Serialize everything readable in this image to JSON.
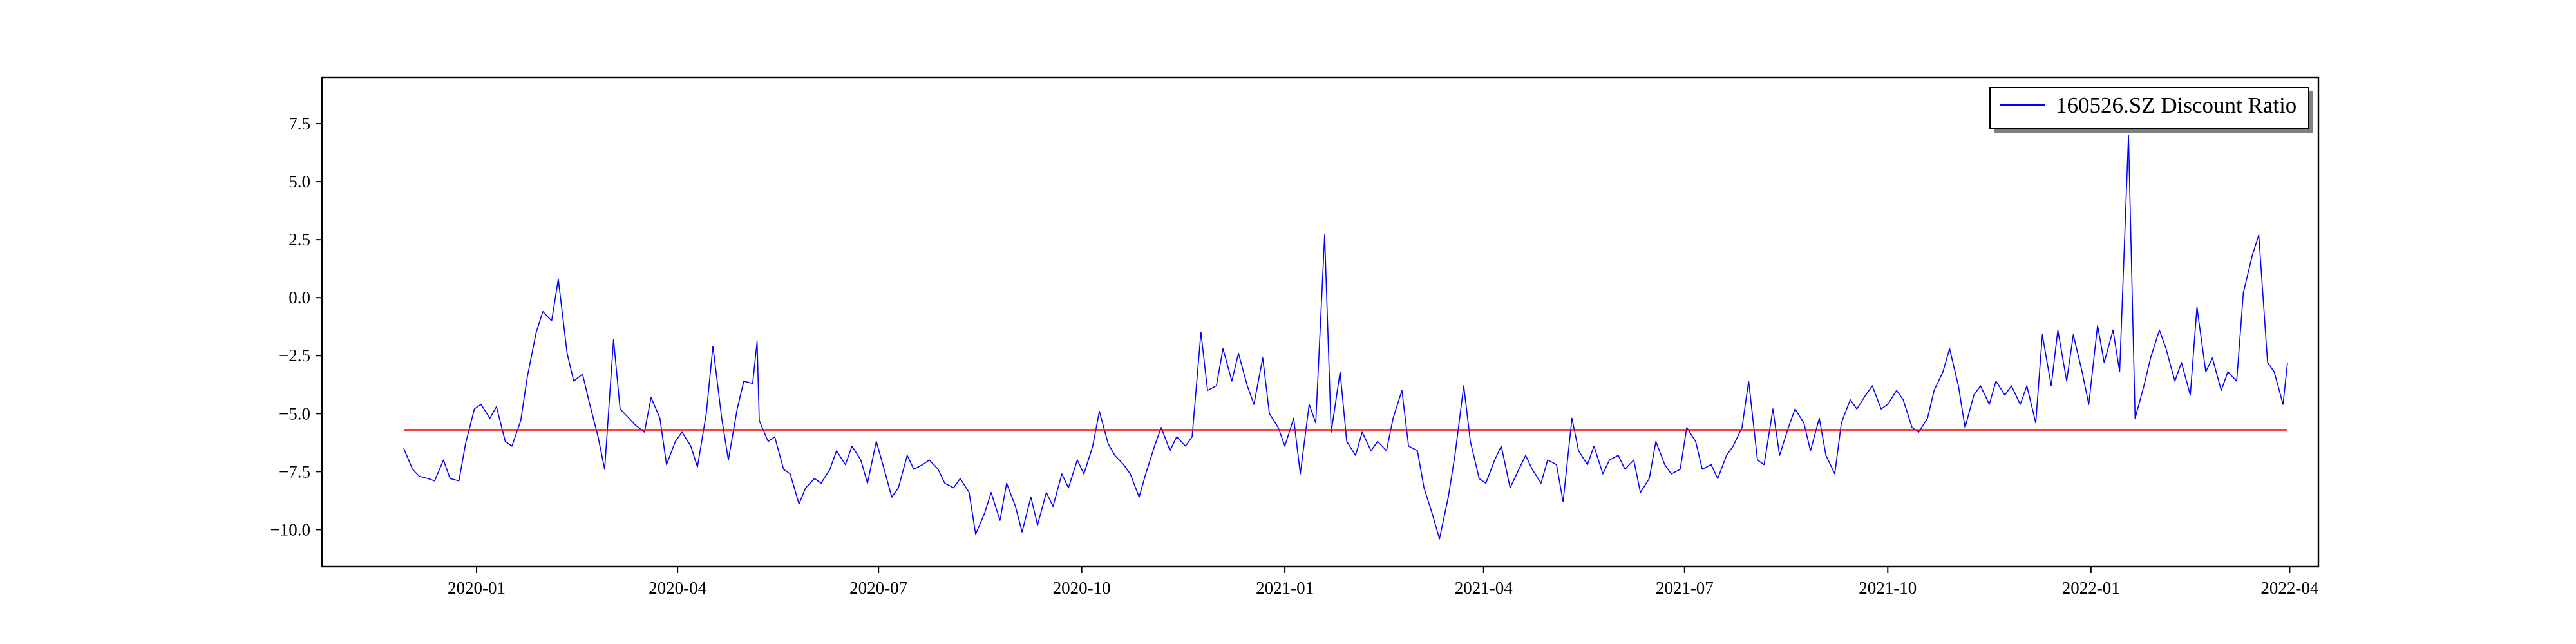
{
  "chart_data": {
    "type": "line",
    "title": "",
    "xlabel": "",
    "ylabel": "",
    "x_range": [
      "2019-10-23",
      "2022-04-14"
    ],
    "ylim": [
      -11.6,
      9.5
    ],
    "x_ticks": [
      {
        "date": "2020-01-01",
        "label": "2020-01"
      },
      {
        "date": "2020-04-01",
        "label": "2020-04"
      },
      {
        "date": "2020-07-01",
        "label": "2020-07"
      },
      {
        "date": "2020-10-01",
        "label": "2020-10"
      },
      {
        "date": "2021-01-01",
        "label": "2021-01"
      },
      {
        "date": "2021-04-01",
        "label": "2021-04"
      },
      {
        "date": "2021-07-01",
        "label": "2021-07"
      },
      {
        "date": "2021-10-01",
        "label": "2021-10"
      },
      {
        "date": "2022-01-01",
        "label": "2022-01"
      },
      {
        "date": "2022-04-01",
        "label": "2022-04"
      }
    ],
    "y_ticks": [
      {
        "value": 7.5,
        "label": "7.5"
      },
      {
        "value": 5.0,
        "label": "5.0"
      },
      {
        "value": 2.5,
        "label": "2.5"
      },
      {
        "value": 0.0,
        "label": "0.0"
      },
      {
        "value": -2.5,
        "label": "−2.5"
      },
      {
        "value": -5.0,
        "label": "−5.0"
      },
      {
        "value": -7.5,
        "label": "−7.5"
      },
      {
        "value": -10.0,
        "label": "−10.0"
      }
    ],
    "grid": false,
    "legend": {
      "position": "upper-right",
      "entries": [
        "160526.SZ Discount Ratio"
      ]
    },
    "series": [
      {
        "name": "160526.SZ Discount Ratio",
        "color": "#0000ff",
        "points": [
          [
            "2019-11-29",
            -6.5
          ],
          [
            "2019-12-03",
            -7.4
          ],
          [
            "2019-12-06",
            -7.7
          ],
          [
            "2019-12-10",
            -7.8
          ],
          [
            "2019-12-13",
            -7.9
          ],
          [
            "2019-12-17",
            -7.0
          ],
          [
            "2019-12-20",
            -7.8
          ],
          [
            "2019-12-24",
            -7.9
          ],
          [
            "2019-12-27",
            -6.3
          ],
          [
            "2019-12-31",
            -4.8
          ],
          [
            "2020-01-03",
            -4.6
          ],
          [
            "2020-01-07",
            -5.2
          ],
          [
            "2020-01-10",
            -4.7
          ],
          [
            "2020-01-14",
            -6.2
          ],
          [
            "2020-01-17",
            -6.4
          ],
          [
            "2020-01-21",
            -5.3
          ],
          [
            "2020-01-24",
            -3.4
          ],
          [
            "2020-01-28",
            -1.5
          ],
          [
            "2020-01-31",
            -0.6
          ],
          [
            "2020-02-04",
            -1.0
          ],
          [
            "2020-02-07",
            0.8
          ],
          [
            "2020-02-11",
            -2.4
          ],
          [
            "2020-02-14",
            -3.6
          ],
          [
            "2020-02-18",
            -3.3
          ],
          [
            "2020-02-21",
            -4.5
          ],
          [
            "2020-02-25",
            -6.0
          ],
          [
            "2020-02-28",
            -7.4
          ],
          [
            "2020-03-03",
            -1.8
          ],
          [
            "2020-03-06",
            -4.8
          ],
          [
            "2020-03-10",
            -5.2
          ],
          [
            "2020-03-13",
            -5.5
          ],
          [
            "2020-03-17",
            -5.8
          ],
          [
            "2020-03-20",
            -4.3
          ],
          [
            "2020-03-24",
            -5.2
          ],
          [
            "2020-03-27",
            -7.2
          ],
          [
            "2020-03-31",
            -6.2
          ],
          [
            "2020-04-03",
            -5.8
          ],
          [
            "2020-04-07",
            -6.4
          ],
          [
            "2020-04-10",
            -7.3
          ],
          [
            "2020-04-14",
            -5.0
          ],
          [
            "2020-04-17",
            -2.1
          ],
          [
            "2020-04-21",
            -5.2
          ],
          [
            "2020-04-24",
            -7.0
          ],
          [
            "2020-04-28",
            -4.8
          ],
          [
            "2020-05-01",
            -3.6
          ],
          [
            "2020-05-05",
            -3.7
          ],
          [
            "2020-05-07",
            -1.9
          ],
          [
            "2020-05-08",
            -5.3
          ],
          [
            "2020-05-12",
            -6.2
          ],
          [
            "2020-05-15",
            -6.0
          ],
          [
            "2020-05-19",
            -7.4
          ],
          [
            "2020-05-22",
            -7.6
          ],
          [
            "2020-05-26",
            -8.9
          ],
          [
            "2020-05-29",
            -8.2
          ],
          [
            "2020-06-02",
            -7.8
          ],
          [
            "2020-06-05",
            -8.0
          ],
          [
            "2020-06-09",
            -7.4
          ],
          [
            "2020-06-12",
            -6.6
          ],
          [
            "2020-06-16",
            -7.2
          ],
          [
            "2020-06-19",
            -6.4
          ],
          [
            "2020-06-23",
            -7.0
          ],
          [
            "2020-06-26",
            -8.0
          ],
          [
            "2020-06-30",
            -6.2
          ],
          [
            "2020-07-03",
            -7.2
          ],
          [
            "2020-07-07",
            -8.6
          ],
          [
            "2020-07-10",
            -8.2
          ],
          [
            "2020-07-14",
            -6.8
          ],
          [
            "2020-07-17",
            -7.4
          ],
          [
            "2020-07-21",
            -7.2
          ],
          [
            "2020-07-24",
            -7.0
          ],
          [
            "2020-07-28",
            -7.4
          ],
          [
            "2020-07-31",
            -8.0
          ],
          [
            "2020-08-04",
            -8.2
          ],
          [
            "2020-08-07",
            -7.8
          ],
          [
            "2020-08-11",
            -8.4
          ],
          [
            "2020-08-14",
            -10.2
          ],
          [
            "2020-08-18",
            -9.3
          ],
          [
            "2020-08-21",
            -8.4
          ],
          [
            "2020-08-25",
            -9.6
          ],
          [
            "2020-08-28",
            -8.0
          ],
          [
            "2020-09-01",
            -9.0
          ],
          [
            "2020-09-04",
            -10.1
          ],
          [
            "2020-09-08",
            -8.6
          ],
          [
            "2020-09-11",
            -9.8
          ],
          [
            "2020-09-15",
            -8.4
          ],
          [
            "2020-09-18",
            -9.0
          ],
          [
            "2020-09-22",
            -7.6
          ],
          [
            "2020-09-25",
            -8.2
          ],
          [
            "2020-09-29",
            -7.0
          ],
          [
            "2020-10-02",
            -7.6
          ],
          [
            "2020-10-06",
            -6.4
          ],
          [
            "2020-10-09",
            -4.9
          ],
          [
            "2020-10-13",
            -6.3
          ],
          [
            "2020-10-16",
            -6.8
          ],
          [
            "2020-10-20",
            -7.2
          ],
          [
            "2020-10-23",
            -7.6
          ],
          [
            "2020-10-27",
            -8.6
          ],
          [
            "2020-10-30",
            -7.6
          ],
          [
            "2020-11-03",
            -6.4
          ],
          [
            "2020-11-06",
            -5.6
          ],
          [
            "2020-11-10",
            -6.6
          ],
          [
            "2020-11-13",
            -6.0
          ],
          [
            "2020-11-17",
            -6.4
          ],
          [
            "2020-11-20",
            -6.0
          ],
          [
            "2020-11-24",
            -1.5
          ],
          [
            "2020-11-27",
            -4.0
          ],
          [
            "2020-12-01",
            -3.8
          ],
          [
            "2020-12-04",
            -2.2
          ],
          [
            "2020-12-08",
            -3.6
          ],
          [
            "2020-12-11",
            -2.4
          ],
          [
            "2020-12-15",
            -3.8
          ],
          [
            "2020-12-18",
            -4.6
          ],
          [
            "2020-12-22",
            -2.6
          ],
          [
            "2020-12-25",
            -5.0
          ],
          [
            "2020-12-29",
            -5.6
          ],
          [
            "2021-01-01",
            -6.4
          ],
          [
            "2021-01-05",
            -5.2
          ],
          [
            "2021-01-08",
            -7.6
          ],
          [
            "2021-01-12",
            -4.6
          ],
          [
            "2021-01-15",
            -5.4
          ],
          [
            "2021-01-19",
            2.7
          ],
          [
            "2021-01-22",
            -5.8
          ],
          [
            "2021-01-26",
            -3.2
          ],
          [
            "2021-01-29",
            -6.2
          ],
          [
            "2021-02-02",
            -6.8
          ],
          [
            "2021-02-05",
            -5.8
          ],
          [
            "2021-02-09",
            -6.6
          ],
          [
            "2021-02-12",
            -6.2
          ],
          [
            "2021-02-16",
            -6.6
          ],
          [
            "2021-02-19",
            -5.2
          ],
          [
            "2021-02-23",
            -4.0
          ],
          [
            "2021-02-26",
            -6.4
          ],
          [
            "2021-03-02",
            -6.6
          ],
          [
            "2021-03-05",
            -8.2
          ],
          [
            "2021-03-09",
            -9.4
          ],
          [
            "2021-03-12",
            -10.4
          ],
          [
            "2021-03-16",
            -8.6
          ],
          [
            "2021-03-19",
            -6.8
          ],
          [
            "2021-03-23",
            -3.8
          ],
          [
            "2021-03-26",
            -6.2
          ],
          [
            "2021-03-30",
            -7.8
          ],
          [
            "2021-04-02",
            -8.0
          ],
          [
            "2021-04-06",
            -7.0
          ],
          [
            "2021-04-09",
            -6.4
          ],
          [
            "2021-04-13",
            -8.2
          ],
          [
            "2021-04-16",
            -7.6
          ],
          [
            "2021-04-20",
            -6.8
          ],
          [
            "2021-04-23",
            -7.4
          ],
          [
            "2021-04-27",
            -8.0
          ],
          [
            "2021-04-30",
            -7.0
          ],
          [
            "2021-05-04",
            -7.2
          ],
          [
            "2021-05-07",
            -8.8
          ],
          [
            "2021-05-11",
            -5.2
          ],
          [
            "2021-05-14",
            -6.6
          ],
          [
            "2021-05-18",
            -7.2
          ],
          [
            "2021-05-21",
            -6.4
          ],
          [
            "2021-05-25",
            -7.6
          ],
          [
            "2021-05-28",
            -7.0
          ],
          [
            "2021-06-01",
            -6.8
          ],
          [
            "2021-06-04",
            -7.4
          ],
          [
            "2021-06-08",
            -7.0
          ],
          [
            "2021-06-11",
            -8.4
          ],
          [
            "2021-06-15",
            -7.8
          ],
          [
            "2021-06-18",
            -6.2
          ],
          [
            "2021-06-22",
            -7.2
          ],
          [
            "2021-06-25",
            -7.6
          ],
          [
            "2021-06-29",
            -7.4
          ],
          [
            "2021-07-02",
            -5.6
          ],
          [
            "2021-07-06",
            -6.2
          ],
          [
            "2021-07-09",
            -7.4
          ],
          [
            "2021-07-13",
            -7.2
          ],
          [
            "2021-07-16",
            -7.8
          ],
          [
            "2021-07-20",
            -6.8
          ],
          [
            "2021-07-23",
            -6.4
          ],
          [
            "2021-07-27",
            -5.6
          ],
          [
            "2021-07-30",
            -3.6
          ],
          [
            "2021-08-03",
            -7.0
          ],
          [
            "2021-08-06",
            -7.2
          ],
          [
            "2021-08-10",
            -4.8
          ],
          [
            "2021-08-13",
            -6.8
          ],
          [
            "2021-08-17",
            -5.6
          ],
          [
            "2021-08-20",
            -4.8
          ],
          [
            "2021-08-24",
            -5.4
          ],
          [
            "2021-08-27",
            -6.6
          ],
          [
            "2021-08-31",
            -5.2
          ],
          [
            "2021-09-03",
            -6.8
          ],
          [
            "2021-09-07",
            -7.6
          ],
          [
            "2021-09-10",
            -5.4
          ],
          [
            "2021-09-14",
            -4.4
          ],
          [
            "2021-09-17",
            -4.8
          ],
          [
            "2021-09-21",
            -4.2
          ],
          [
            "2021-09-24",
            -3.8
          ],
          [
            "2021-09-28",
            -4.8
          ],
          [
            "2021-10-01",
            -4.6
          ],
          [
            "2021-10-05",
            -4.0
          ],
          [
            "2021-10-08",
            -4.4
          ],
          [
            "2021-10-12",
            -5.6
          ],
          [
            "2021-10-15",
            -5.8
          ],
          [
            "2021-10-19",
            -5.2
          ],
          [
            "2021-10-22",
            -4.0
          ],
          [
            "2021-10-26",
            -3.2
          ],
          [
            "2021-10-29",
            -2.2
          ],
          [
            "2021-11-02",
            -3.8
          ],
          [
            "2021-11-05",
            -5.6
          ],
          [
            "2021-11-09",
            -4.2
          ],
          [
            "2021-11-12",
            -3.8
          ],
          [
            "2021-11-16",
            -4.6
          ],
          [
            "2021-11-19",
            -3.6
          ],
          [
            "2021-11-23",
            -4.2
          ],
          [
            "2021-11-26",
            -3.8
          ],
          [
            "2021-11-30",
            -4.6
          ],
          [
            "2021-12-03",
            -3.8
          ],
          [
            "2021-12-07",
            -5.4
          ],
          [
            "2021-12-10",
            -1.6
          ],
          [
            "2021-12-14",
            -3.8
          ],
          [
            "2021-12-17",
            -1.4
          ],
          [
            "2021-12-21",
            -3.6
          ],
          [
            "2021-12-24",
            -1.6
          ],
          [
            "2021-12-28",
            -3.2
          ],
          [
            "2021-12-31",
            -4.6
          ],
          [
            "2022-01-04",
            -1.2
          ],
          [
            "2022-01-07",
            -2.8
          ],
          [
            "2022-01-11",
            -1.4
          ],
          [
            "2022-01-14",
            -3.2
          ],
          [
            "2022-01-18",
            7.0
          ],
          [
            "2022-01-21",
            -5.2
          ],
          [
            "2022-01-25",
            -3.8
          ],
          [
            "2022-01-28",
            -2.6
          ],
          [
            "2022-02-01",
            -1.4
          ],
          [
            "2022-02-04",
            -2.2
          ],
          [
            "2022-02-08",
            -3.6
          ],
          [
            "2022-02-11",
            -2.8
          ],
          [
            "2022-02-15",
            -4.2
          ],
          [
            "2022-02-18",
            -0.4
          ],
          [
            "2022-02-22",
            -3.2
          ],
          [
            "2022-02-25",
            -2.6
          ],
          [
            "2022-03-01",
            -4.0
          ],
          [
            "2022-03-04",
            -3.2
          ],
          [
            "2022-03-08",
            -3.6
          ],
          [
            "2022-03-11",
            0.2
          ],
          [
            "2022-03-15",
            1.8
          ],
          [
            "2022-03-18",
            2.7
          ],
          [
            "2022-03-22",
            -2.8
          ],
          [
            "2022-03-25",
            -3.2
          ],
          [
            "2022-03-29",
            -4.6
          ],
          [
            "2022-03-31",
            -2.8
          ]
        ]
      },
      {
        "name": "",
        "color": "#ff0000",
        "points": [
          [
            "2019-11-29",
            -5.7
          ],
          [
            "2022-03-31",
            -5.7
          ]
        ]
      }
    ]
  }
}
